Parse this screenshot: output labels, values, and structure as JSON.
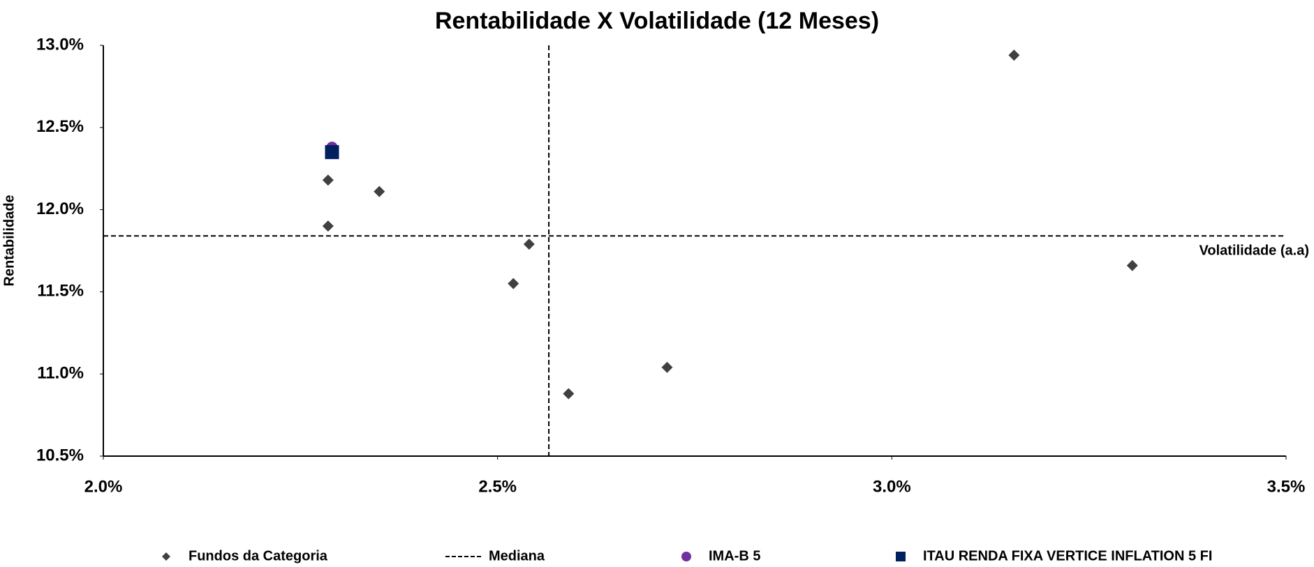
{
  "chart_data": {
    "type": "scatter",
    "title": "Rentabilidade X Volatilidade (12 Meses)",
    "y_label": "Rentabilidade",
    "annotation": "Volatilidade (a.a)",
    "xlim": [
      2.0,
      3.5
    ],
    "xticks": [
      {
        "value": 2.0,
        "label": "2.0%"
      },
      {
        "value": 2.5,
        "label": "2.5%"
      },
      {
        "value": 3.0,
        "label": "3.0%"
      },
      {
        "value": 3.5,
        "label": "3.5%"
      }
    ],
    "ylim": [
      10.5,
      13.0
    ],
    "yticks": [
      {
        "value": 10.5,
        "label": "10.5%"
      },
      {
        "value": 11.0,
        "label": "11.0%"
      },
      {
        "value": 11.5,
        "label": "11.5%"
      },
      {
        "value": 12.0,
        "label": "12.0%"
      },
      {
        "value": 12.5,
        "label": "12.5%"
      },
      {
        "value": 13.0,
        "label": "13.0%"
      }
    ],
    "series": [
      {
        "name": "Fundos da Categoria",
        "color": "#404040",
        "marker": "diamond",
        "x": [
          2.285,
          2.35,
          2.285,
          2.54,
          2.52,
          2.59,
          2.715,
          3.155,
          3.305
        ],
        "y": [
          12.18,
          12.11,
          11.9,
          11.79,
          11.55,
          10.88,
          11.04,
          12.94,
          11.66
        ]
      },
      {
        "name": "IMA-B 5",
        "color": "#7030a0",
        "marker": "circle",
        "x": [
          2.29
        ],
        "y": [
          12.38
        ]
      },
      {
        "name": "ITAU RENDA FIXA VERTICE INFLATION 5 FI",
        "color": "#002060",
        "marker": "square",
        "x": [
          2.29
        ],
        "y": [
          12.35
        ]
      }
    ],
    "median": {
      "name": "Mediana",
      "color": "#000000",
      "x": 2.565,
      "y": 11.84
    }
  }
}
